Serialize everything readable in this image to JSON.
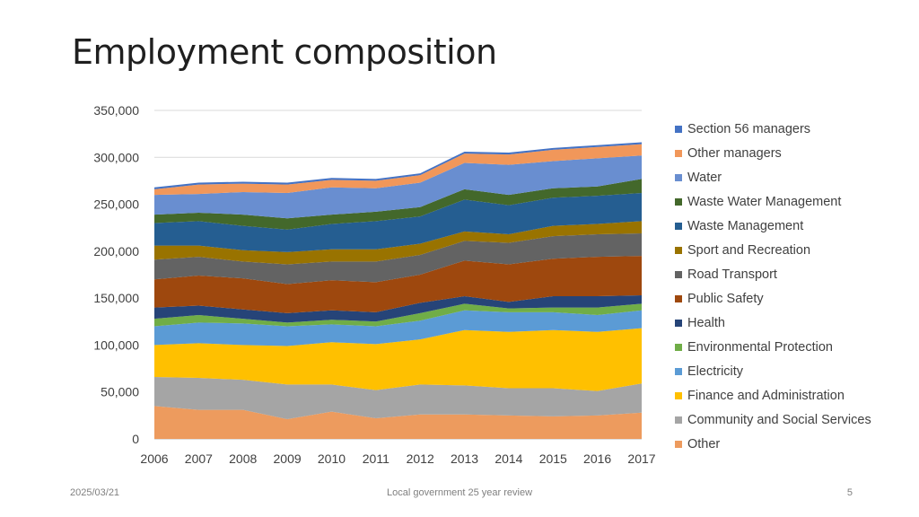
{
  "slide": {
    "title": "Employment composition",
    "footer_date": "2025/03/21",
    "footer_text": "Local government 25 year review",
    "page_number": "5"
  },
  "chart_data": {
    "type": "area",
    "stacked": true,
    "title": "",
    "xlabel": "",
    "ylabel": "",
    "x": [
      "2006",
      "2007",
      "2008",
      "2009",
      "2010",
      "2011",
      "2012",
      "2013",
      "2014",
      "2015",
      "2016",
      "2017"
    ],
    "ylim": [
      0,
      350000
    ],
    "yticks": [
      0,
      50000,
      100000,
      150000,
      200000,
      250000,
      300000,
      350000
    ],
    "ytick_labels": [
      "0",
      "50,000",
      "100,000",
      "150,000",
      "200,000",
      "250,000",
      "300,000",
      "350,000"
    ],
    "grid": true,
    "legend_position": "right",
    "series": [
      {
        "name": "Other",
        "color": "#ED9B5E",
        "values": [
          35000,
          31000,
          31000,
          21000,
          29000,
          22000,
          26000,
          26000,
          25000,
          24000,
          25000,
          28000
        ]
      },
      {
        "name": "Community and Social Services",
        "color": "#A5A5A5",
        "values": [
          31000,
          34000,
          32000,
          37000,
          29000,
          30000,
          32000,
          31000,
          29000,
          30000,
          26000,
          31000
        ]
      },
      {
        "name": "Finance and Administration",
        "color": "#FFC000",
        "values": [
          34000,
          37000,
          37000,
          41000,
          45000,
          49000,
          48000,
          59000,
          60000,
          62000,
          63000,
          59000
        ]
      },
      {
        "name": "Electricity",
        "color": "#5B9BD5",
        "values": [
          20000,
          22000,
          23000,
          21000,
          19000,
          19000,
          20000,
          21000,
          21000,
          19000,
          18000,
          19000
        ]
      },
      {
        "name": "Environmental Protection",
        "color": "#70AD47",
        "values": [
          8000,
          8000,
          5000,
          4000,
          5000,
          5000,
          8000,
          7000,
          4000,
          5000,
          8000,
          7000
        ]
      },
      {
        "name": "Health",
        "color": "#264478",
        "values": [
          12000,
          10000,
          10000,
          10000,
          10000,
          10000,
          11000,
          8000,
          7000,
          12000,
          12000,
          9000
        ]
      },
      {
        "name": "Public Safety",
        "color": "#9E480E",
        "values": [
          30000,
          32000,
          33000,
          31000,
          32000,
          32000,
          30000,
          38000,
          40000,
          40000,
          42000,
          42000
        ]
      },
      {
        "name": "Road Transport",
        "color": "#636363",
        "values": [
          21000,
          20000,
          18000,
          21000,
          20000,
          22000,
          21000,
          21000,
          23000,
          24000,
          24000,
          24000
        ]
      },
      {
        "name": "Sport and Recreation",
        "color": "#997300",
        "values": [
          15000,
          12000,
          12000,
          13000,
          13000,
          13000,
          12000,
          10000,
          9000,
          11000,
          11000,
          13000
        ]
      },
      {
        "name": "Waste Management",
        "color": "#255E91",
        "values": [
          24000,
          26000,
          26000,
          24000,
          27000,
          30000,
          29000,
          34000,
          31000,
          30000,
          30000,
          30000
        ]
      },
      {
        "name": "Waste Water Management",
        "color": "#43682B",
        "values": [
          9000,
          9000,
          12000,
          12000,
          10000,
          10000,
          10000,
          11000,
          11000,
          10000,
          10000,
          15000
        ]
      },
      {
        "name": "Water",
        "color": "#698ED0",
        "values": [
          21000,
          20000,
          24000,
          27000,
          29000,
          25000,
          26000,
          28000,
          32000,
          29000,
          30000,
          25000
        ]
      },
      {
        "name": "Other managers",
        "color": "#F1975A",
        "values": [
          6000,
          10000,
          9000,
          9000,
          8000,
          8000,
          8000,
          10000,
          11000,
          12000,
          12000,
          12000
        ]
      },
      {
        "name": "Section 56 managers",
        "color": "#4472C4",
        "values": [
          2000,
          2000,
          2000,
          2000,
          2000,
          2000,
          2000,
          2000,
          2000,
          2000,
          2000,
          2000
        ]
      }
    ]
  }
}
